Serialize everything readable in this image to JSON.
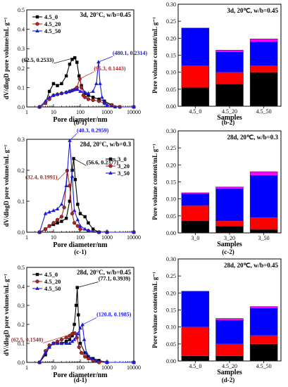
{
  "chart_data": [
    {
      "id": "b-1",
      "type": "line",
      "title": "3d, 20°C, w/b=0.45",
      "panel_label": "(b-1)",
      "xlabel": "Pore diameter/nm",
      "ylabel": "dV/dlogD pore volume/mL g⁻¹",
      "xscale": "log",
      "xlim": [
        1,
        10000
      ],
      "ylim": [
        0,
        0.5
      ],
      "xticks": [
        1,
        10,
        100,
        1000,
        10000
      ],
      "yticks": [
        0,
        0.1,
        0.2,
        0.3,
        0.4,
        0.5
      ],
      "ytick_labels": [
        "0.0",
        "0.1",
        "0.2",
        "0.3",
        "0.4",
        "0.5"
      ],
      "legend_position": "top-left",
      "series": [
        {
          "name": "4.5_0",
          "color": "#000000",
          "marker": "square",
          "x": [
            3,
            5,
            7,
            10,
            14,
            20,
            30,
            40,
            50,
            62.5,
            75,
            90,
            110,
            150,
            200,
            300,
            500,
            800,
            1500,
            3000,
            10000
          ],
          "y": [
            0.0,
            0.02,
            0.08,
            0.12,
            0.11,
            0.12,
            0.16,
            0.22,
            0.245,
            0.2533,
            0.23,
            0.16,
            0.11,
            0.07,
            0.06,
            0.05,
            0.04,
            0.03,
            0.01,
            0.0,
            0.0
          ]
        },
        {
          "name": "4.5_20",
          "color": "#b22222",
          "marker": "circle",
          "x": [
            3,
            5,
            7,
            10,
            14,
            20,
            30,
            40,
            50,
            62.5,
            75,
            95.3,
            110,
            130,
            150,
            200,
            300,
            500,
            800,
            1500,
            3000,
            10000
          ],
          "y": [
            0.0,
            0.02,
            0.04,
            0.06,
            0.065,
            0.07,
            0.075,
            0.08,
            0.085,
            0.09,
            0.1,
            0.1443,
            0.1,
            0.06,
            0.05,
            0.04,
            0.035,
            0.03,
            0.02,
            0.01,
            0.0,
            0.0
          ]
        },
        {
          "name": "4.5_50",
          "color": "#1a1adc",
          "marker": "triangle",
          "x": [
            3,
            5,
            7,
            10,
            14,
            20,
            30,
            40,
            50,
            62.5,
            80,
            100,
            150,
            200,
            300,
            400,
            480.1,
            550,
            650,
            800,
            1000,
            2000,
            10000
          ],
          "y": [
            0.0,
            0.03,
            0.05,
            0.06,
            0.065,
            0.07,
            0.075,
            0.08,
            0.085,
            0.09,
            0.09,
            0.08,
            0.075,
            0.07,
            0.08,
            0.12,
            0.2314,
            0.12,
            0.05,
            0.02,
            0.01,
            0.0,
            0.0
          ]
        }
      ],
      "annotations": [
        {
          "text": "(62.5, 0.2533)",
          "color": "#000000",
          "x": 62.5,
          "y": 0.2533
        },
        {
          "text": "(95.3, 0.1443)",
          "color": "#b22222",
          "x": 95.3,
          "y": 0.1443
        },
        {
          "text": "(480.1, 0.2314)",
          "color": "#1a1adc",
          "x": 480.1,
          "y": 0.2314
        }
      ]
    },
    {
      "id": "b-2",
      "type": "bar",
      "title": "3d, 20℃, w/b=0.45",
      "panel_label": "(b-2)",
      "xlabel": "Samples",
      "ylabel": "Pore volume content/mL g⁻¹",
      "ylim": [
        0,
        0.3
      ],
      "yticks": [
        0,
        0.05,
        0.1,
        0.15,
        0.2,
        0.25,
        0.3
      ],
      "ytick_labels": [
        "0.00",
        "0.05",
        "0.10",
        "0.15",
        "0.20",
        "0.25",
        "0.30"
      ],
      "categories": [
        "4.5_0",
        "4.5_20",
        "4.5_50"
      ],
      "stack_colors": [
        "#000000",
        "#ff0000",
        "#0000ff",
        "#ff00ff"
      ],
      "stacks": [
        [
          0.055,
          0.065,
          0.11,
          0.0
        ],
        [
          0.065,
          0.035,
          0.06,
          0.005
        ],
        [
          0.1,
          0.02,
          0.07,
          0.008
        ]
      ]
    },
    {
      "id": "c-1",
      "type": "line",
      "title": "28d, 20°C, w/b=0.3",
      "panel_label": "(c-1)",
      "xlabel": "Pore diameter/nm",
      "ylabel": "dV/dlogD pore volume/mL g⁻¹",
      "xscale": "log",
      "xlim": [
        1,
        10000
      ],
      "ylim": [
        0,
        0.3
      ],
      "xticks": [
        1,
        10,
        100,
        1000,
        10000
      ],
      "yticks": [
        0,
        0.1,
        0.2,
        0.3
      ],
      "ytick_labels": [
        "0.0",
        "0.1",
        "0.2",
        "0.3"
      ],
      "legend_position": "right",
      "series": [
        {
          "name": "3_0",
          "color": "#000000",
          "marker": "square",
          "x": [
            3,
            5,
            7,
            10,
            14,
            20,
            30,
            40,
            50,
            56.6,
            65,
            80,
            100,
            150,
            200,
            300,
            500,
            1000,
            10000
          ],
          "y": [
            0.0,
            0.01,
            0.02,
            0.025,
            0.03,
            0.035,
            0.045,
            0.1,
            0.2,
            0.2377,
            0.17,
            0.09,
            0.06,
            0.05,
            0.03,
            0.01,
            0.0,
            0.0,
            0.0
          ]
        },
        {
          "name": "3_20",
          "color": "#b22222",
          "marker": "circle",
          "x": [
            3,
            5,
            7,
            10,
            14,
            20,
            25,
            32.4,
            40,
            50,
            60,
            80,
            100,
            200,
            500,
            1000,
            10000
          ],
          "y": [
            0.0,
            0.01,
            0.02,
            0.03,
            0.04,
            0.05,
            0.08,
            0.1991,
            0.15,
            0.06,
            0.03,
            0.02,
            0.01,
            0.005,
            0.0,
            0.0,
            0.0
          ]
        },
        {
          "name": "3_50",
          "color": "#1a1adc",
          "marker": "triangle",
          "x": [
            3,
            5,
            7,
            10,
            14,
            20,
            30,
            40.3,
            50,
            60,
            80,
            100,
            150,
            200,
            500,
            1000,
            10000
          ],
          "y": [
            0.0,
            0.06,
            0.065,
            0.07,
            0.075,
            0.09,
            0.15,
            0.2959,
            0.18,
            0.07,
            0.04,
            0.02,
            0.01,
            0.005,
            0.0,
            0.0,
            0.0
          ]
        }
      ],
      "annotations": [
        {
          "text": "(40.3, 0.2959)",
          "color": "#1a1adc",
          "x": 40.3,
          "y": 0.2959
        },
        {
          "text": "(32.4, 0.1991)",
          "color": "#b22222",
          "x": 32.4,
          "y": 0.1991
        },
        {
          "text": "(56.6, 0.2377)",
          "color": "#000000",
          "x": 56.6,
          "y": 0.2377
        }
      ]
    },
    {
      "id": "c-2",
      "type": "bar",
      "title": "28d, 20℃, w/b=0.3",
      "panel_label": "(c-2)",
      "xlabel": "Samples",
      "ylabel": "Pore volume content/mL g⁻¹",
      "ylim": [
        0,
        0.3
      ],
      "yticks": [
        0,
        0.05,
        0.1,
        0.15,
        0.2,
        0.25,
        0.3
      ],
      "ytick_labels": [
        "0.00",
        "0.05",
        "0.10",
        "0.15",
        "0.20",
        "0.25",
        "0.30"
      ],
      "categories": [
        "3_0",
        "3_20",
        "3_50"
      ],
      "stack_colors": [
        "#000000",
        "#ff0000",
        "#0000ff",
        "#ff00ff"
      ],
      "stacks": [
        [
          0.035,
          0.045,
          0.035,
          0.003
        ],
        [
          0.02,
          0.015,
          0.095,
          0.005
        ],
        [
          0.01,
          0.035,
          0.125,
          0.01
        ]
      ]
    },
    {
      "id": "d-1",
      "type": "line",
      "title": "28d, 20°C, w/b=0.45",
      "panel_label": "(d-1)",
      "xlabel": "Pore diameter/nm",
      "ylabel": "dV/dlogD pore volume/mL g⁻¹",
      "xscale": "log",
      "xlim": [
        1,
        10000
      ],
      "ylim": [
        0,
        0.5
      ],
      "xticks": [
        1,
        10,
        100,
        1000,
        10000
      ],
      "yticks": [
        0,
        0.1,
        0.2,
        0.3,
        0.4,
        0.5
      ],
      "ytick_labels": [
        "0.0",
        "0.1",
        "0.2",
        "0.3",
        "0.4",
        "0.5"
      ],
      "legend_position": "top-left",
      "series": [
        {
          "name": "4.5_0",
          "color": "#000000",
          "marker": "square",
          "x": [
            3,
            5,
            7,
            10,
            14,
            20,
            30,
            40,
            50,
            60,
            70,
            77.1,
            85,
            100,
            150,
            200,
            300,
            500,
            1000,
            10000
          ],
          "y": [
            0.0,
            0.04,
            0.08,
            0.1,
            0.1,
            0.1,
            0.11,
            0.12,
            0.14,
            0.2,
            0.3,
            0.3939,
            0.25,
            0.1,
            0.05,
            0.03,
            0.02,
            0.01,
            0.0,
            0.0
          ]
        },
        {
          "name": "4.5_20",
          "color": "#b22222",
          "marker": "circle",
          "x": [
            3,
            5,
            7,
            10,
            14,
            20,
            30,
            40,
            50,
            62.5,
            75,
            90,
            110,
            150,
            200,
            300,
            500,
            1000,
            10000
          ],
          "y": [
            0.0,
            0.06,
            0.09,
            0.1,
            0.11,
            0.12,
            0.13,
            0.14,
            0.15,
            0.154,
            0.13,
            0.08,
            0.05,
            0.03,
            0.02,
            0.01,
            0.0,
            0.0,
            0.0
          ]
        },
        {
          "name": "4.5_50",
          "color": "#1a1adc",
          "marker": "triangle",
          "x": [
            3,
            5,
            7,
            10,
            14,
            20,
            30,
            40,
            50,
            60,
            80,
            100,
            120.8,
            140,
            170,
            250,
            400,
            1000,
            10000
          ],
          "y": [
            0.0,
            0.05,
            0.08,
            0.1,
            0.1,
            0.1,
            0.1,
            0.1,
            0.11,
            0.12,
            0.15,
            0.18,
            0.1985,
            0.12,
            0.05,
            0.02,
            0.01,
            0.0,
            0.0
          ]
        }
      ],
      "annotations": [
        {
          "text": "(77.1, 0.3939)",
          "color": "#000000",
          "x": 77.1,
          "y": 0.3939
        },
        {
          "text": "(62.5, 0.1540)",
          "color": "#b22222",
          "x": 62.5,
          "y": 0.154
        },
        {
          "text": "(120.8, 0.1985)",
          "color": "#1a1adc",
          "x": 120.8,
          "y": 0.1985
        }
      ]
    },
    {
      "id": "d-2",
      "type": "bar",
      "title": "28d, 20℃, w/b=0.45",
      "panel_label": "(d-2)",
      "xlabel": "Samples",
      "ylabel": "Pore volume content/mL g⁻¹",
      "ylim": [
        0,
        0.3
      ],
      "yticks": [
        0,
        0.05,
        0.1,
        0.15,
        0.2,
        0.25,
        0.3
      ],
      "ytick_labels": [
        "0.00",
        "0.05",
        "0.10",
        "0.15",
        "0.20",
        "0.25",
        "0.30"
      ],
      "categories": [
        "4.5_0",
        "4.5_20",
        "4.5_50"
      ],
      "stack_colors": [
        "#000000",
        "#ff0000",
        "#0000ff",
        "#ff00ff"
      ],
      "stacks": [
        [
          0.015,
          0.085,
          0.105,
          0.0
        ],
        [
          0.015,
          0.035,
          0.07,
          0.005
        ],
        [
          0.05,
          0.025,
          0.08,
          0.005
        ]
      ]
    }
  ]
}
